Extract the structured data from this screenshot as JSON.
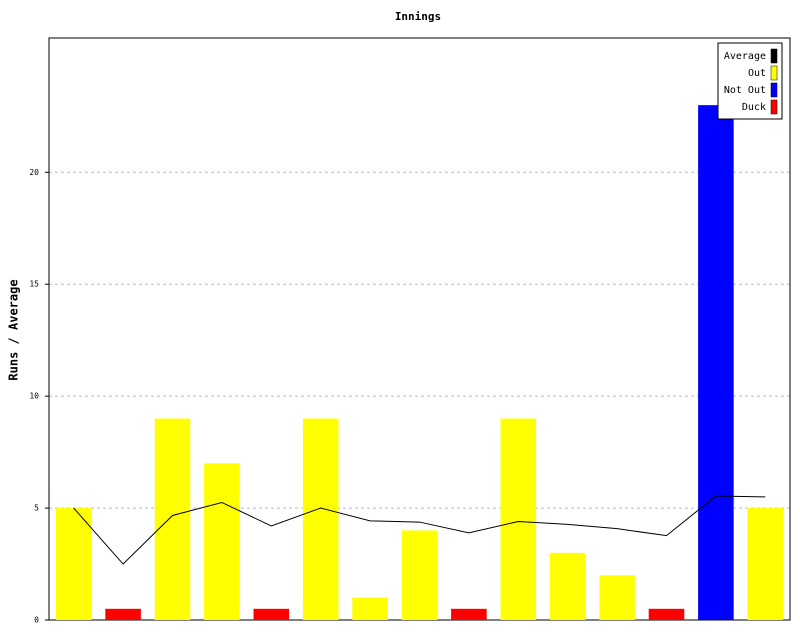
{
  "chart_data": {
    "type": "bar",
    "title": "Innings",
    "y_label": "Runs / Average",
    "categories": [
      null,
      null,
      null,
      null,
      null,
      null,
      null,
      null,
      null,
      null,
      null,
      null,
      null,
      null,
      null
    ],
    "series": [
      {
        "name": "Average",
        "type": "line",
        "color": "#000000",
        "values": [
          5,
          2.5,
          4.67,
          5.25,
          4.2,
          5,
          4.43,
          4.375,
          3.89,
          4.4,
          4.27,
          4.08,
          3.77,
          5.54,
          5.5
        ]
      },
      {
        "name": "Out",
        "type": "bar",
        "color": "#ffff00",
        "values": [
          5,
          null,
          9,
          7,
          null,
          9,
          1,
          4,
          null,
          9,
          3,
          2,
          null,
          null,
          5
        ]
      },
      {
        "name": "Not Out",
        "type": "bar",
        "color": "#0000ff",
        "values": [
          null,
          null,
          null,
          null,
          null,
          null,
          null,
          null,
          null,
          null,
          null,
          null,
          null,
          23,
          null
        ]
      },
      {
        "name": "Duck",
        "type": "bar",
        "color": "#ff0000",
        "values": [
          null,
          0.5,
          null,
          null,
          0.5,
          null,
          null,
          null,
          0.5,
          null,
          null,
          null,
          0.5,
          null,
          null
        ]
      }
    ],
    "ylim": [
      0,
      26
    ],
    "yticks": [
      0,
      5,
      10,
      15,
      20
    ],
    "grid": true,
    "legend": "top-right"
  }
}
